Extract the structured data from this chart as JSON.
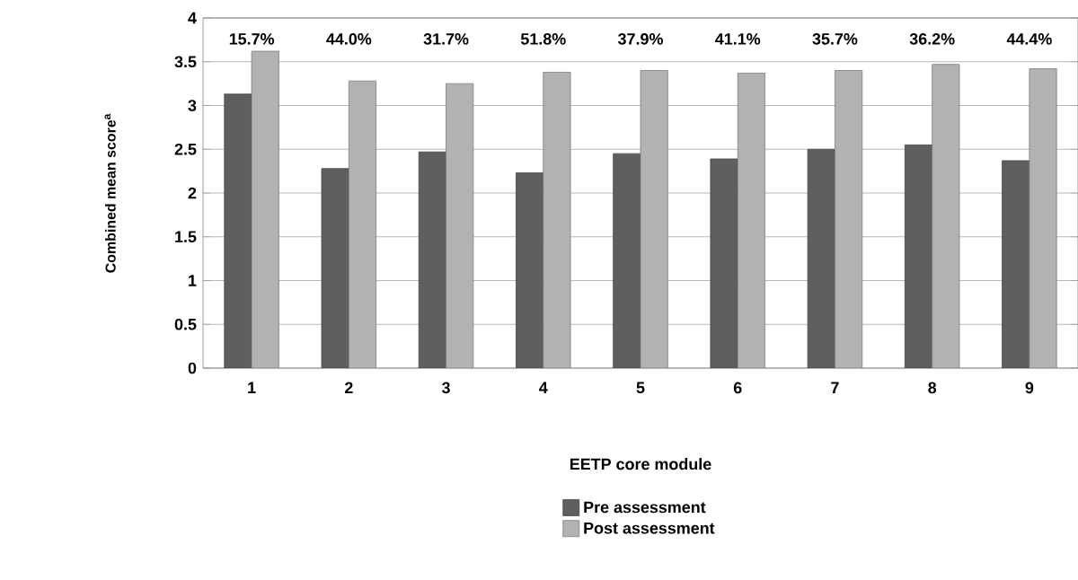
{
  "chart_data": {
    "type": "bar",
    "xlabel": "EETP core module",
    "ylabel": "Combined mean score$^{a}$",
    "categories": [
      "1",
      "2",
      "3",
      "4",
      "5",
      "6",
      "7",
      "8",
      "9"
    ],
    "series": [
      {
        "name": "Pre assessment",
        "color": "#5f5f5f",
        "values": [
          3.13,
          2.28,
          2.47,
          2.23,
          2.45,
          2.39,
          2.5,
          2.55,
          2.37
        ]
      },
      {
        "name": "Post assessment",
        "color": "#b2b2b2",
        "values": [
          3.62,
          3.28,
          3.25,
          3.38,
          3.4,
          3.37,
          3.4,
          3.47,
          3.42
        ]
      }
    ],
    "ylim": [
      0,
      4
    ],
    "yticks": [
      0,
      0.5,
      1,
      1.5,
      2,
      2.5,
      3,
      3.5,
      4
    ],
    "grid": "y",
    "legend": "bottom",
    "annotations": [
      "15.7%",
      "44.0%",
      "31.7%",
      "51.8%",
      "37.9%",
      "41.1%",
      "35.7%",
      "36.2%",
      "44.4%"
    ]
  }
}
